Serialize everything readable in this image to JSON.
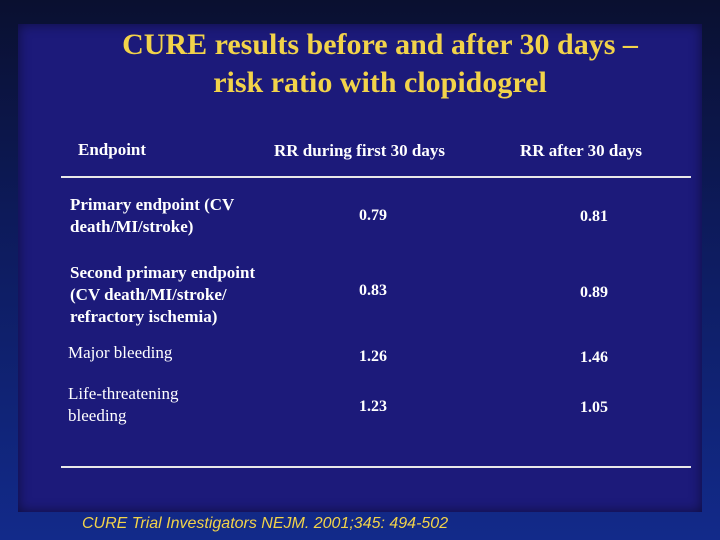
{
  "slide": {
    "title_line1": "CURE results before and after 30 days –",
    "title_line2": "risk ratio with clopidogrel",
    "table": {
      "headers": [
        "Endpoint",
        "RR during first 30 days",
        "RR after 30 days"
      ],
      "rows": [
        {
          "endpoint": [
            "Primary endpoint (CV",
            "death/MI/stroke)"
          ],
          "rr_first_30": "0.79",
          "rr_after_30": "0.81"
        },
        {
          "endpoint": [
            "Second primary endpoint",
            "(CV death/MI/stroke/",
            "refractory ischemia)"
          ],
          "rr_first_30": "0.83",
          "rr_after_30": "0.89"
        },
        {
          "endpoint": [
            "Major bleeding"
          ],
          "rr_first_30": "1.26",
          "rr_after_30": "1.46"
        },
        {
          "endpoint": [
            "Life-threatening",
            "bleeding"
          ],
          "rr_first_30": "1.23",
          "rr_after_30": "1.05"
        }
      ]
    },
    "citation": "CURE Trial Investigators NEJM. 2001;345: 494-502"
  }
}
